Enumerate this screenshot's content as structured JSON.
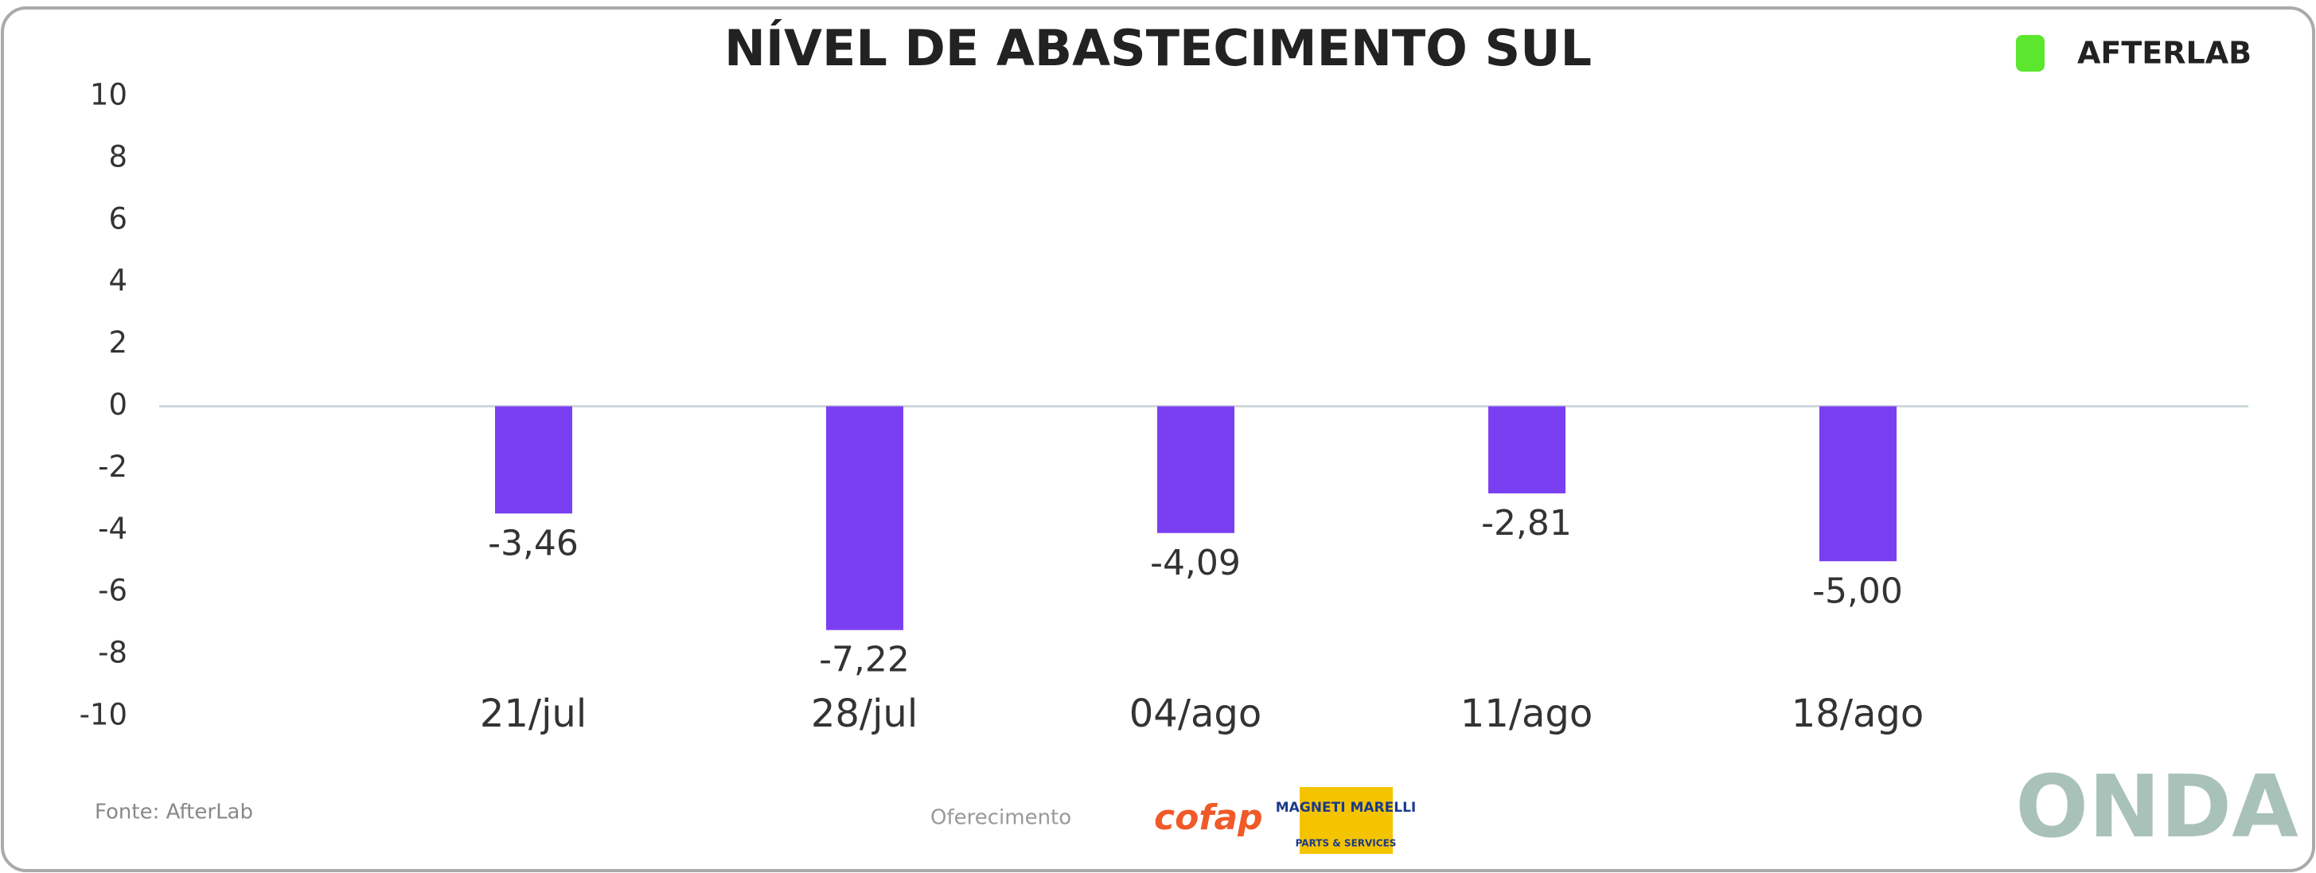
{
  "chart_data": {
    "type": "bar",
    "title": "NÍVEL DE ABASTECIMENTO SUL",
    "categories": [
      "21/jul",
      "28/jul",
      "04/ago",
      "11/ago",
      "18/ago"
    ],
    "values": [
      -3.46,
      -7.22,
      -4.09,
      -2.81,
      -5.0
    ],
    "value_labels": [
      "-3,46",
      "-7,22",
      "-4,09",
      "-2,81",
      "-5,00"
    ],
    "color": "#7b3ff2",
    "ylim": [
      -10,
      10
    ],
    "yticks": [
      -10,
      -8,
      -6,
      -4,
      -2,
      0,
      2,
      4,
      6,
      8,
      10
    ]
  },
  "footer": {
    "source": "Fonte: AfterLab",
    "sponsor": "Oferecimento",
    "sponsor_1": "cofap",
    "sponsor_2": "MAGNETI MARELLI",
    "sponsor_2_sub": "PARTS & SERVICES",
    "brand": "AFTERLAB",
    "series_brand": "ONDA"
  }
}
